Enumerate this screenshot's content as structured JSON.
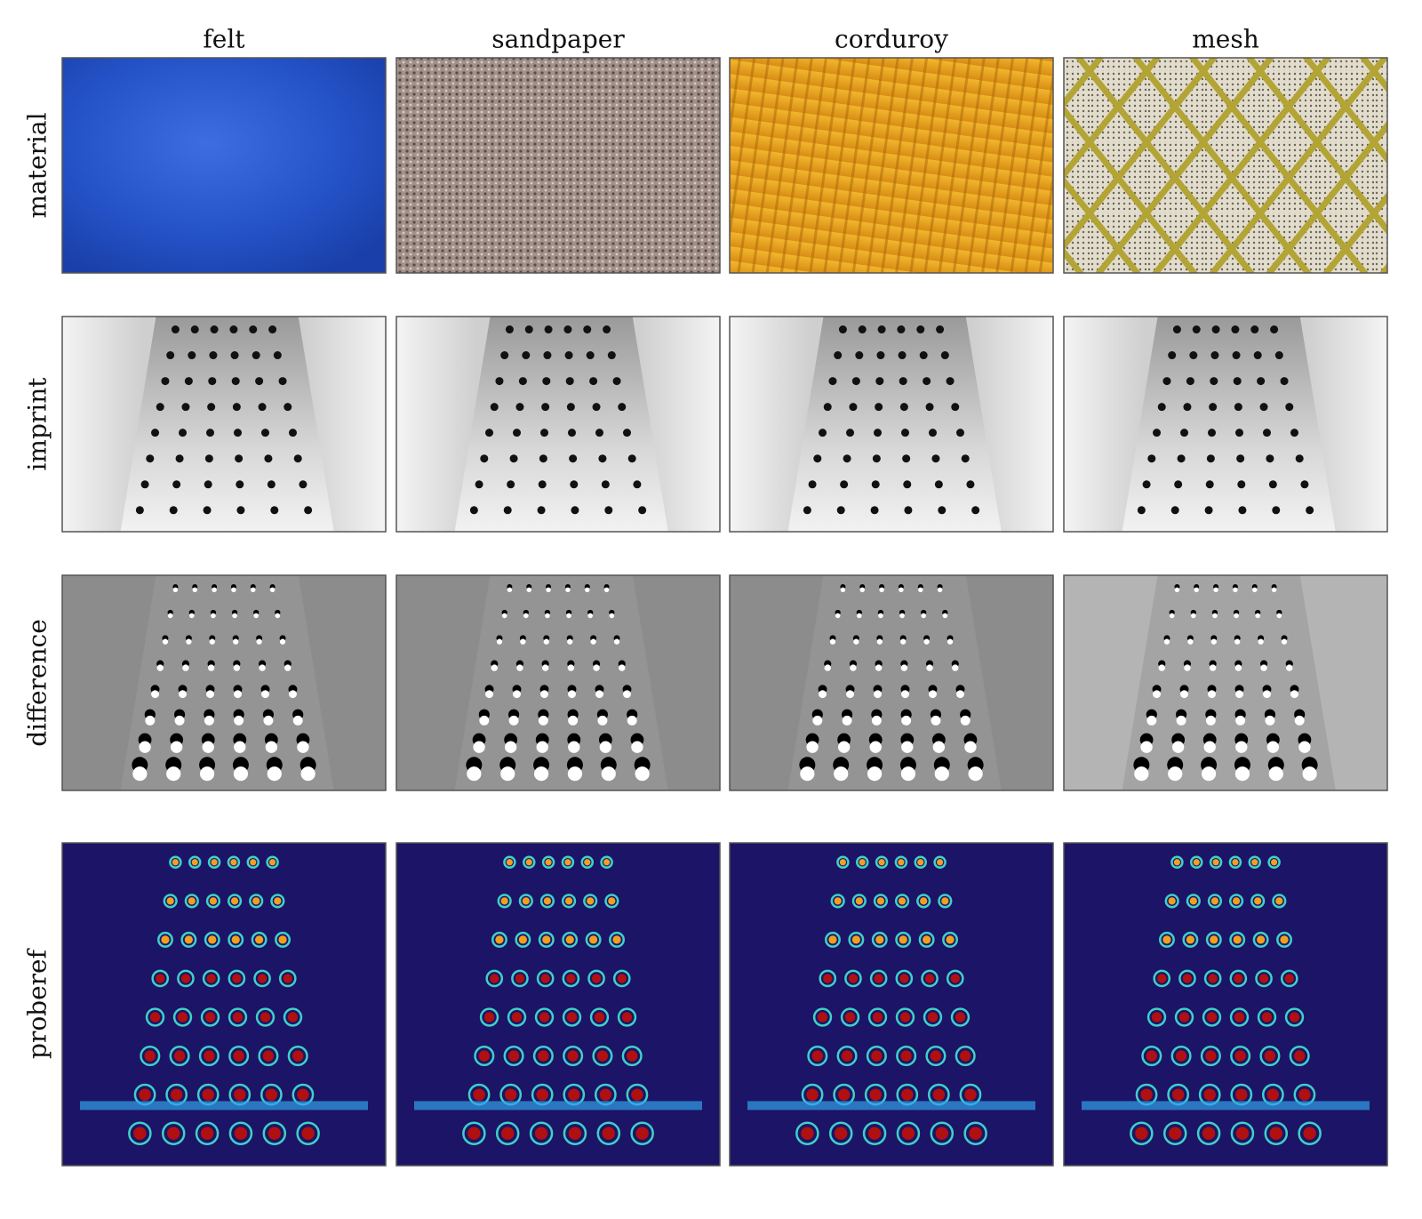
{
  "columns": [
    "felt",
    "sandpaper",
    "corduroy",
    "mesh"
  ],
  "rows": [
    "material",
    "imprint",
    "difference",
    "proberef"
  ]
}
